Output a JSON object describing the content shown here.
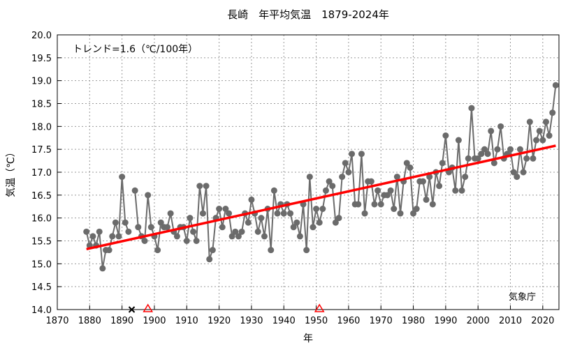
{
  "chart_data": {
    "type": "line",
    "title": "長崎　年平均気温　1879-2024年",
    "xlabel": "年",
    "ylabel": "気温（℃）",
    "xlim": [
      1870,
      2025
    ],
    "ylim": [
      14.0,
      20.0
    ],
    "xticks": [
      1870,
      1880,
      1890,
      1900,
      1910,
      1920,
      1930,
      1940,
      1950,
      1960,
      1970,
      1980,
      1990,
      2000,
      2010,
      2020
    ],
    "yticks": [
      "14.0",
      "14.5",
      "15.0",
      "15.5",
      "16.0",
      "16.5",
      "17.0",
      "17.5",
      "18.0",
      "18.5",
      "19.0",
      "19.5",
      "20.0"
    ],
    "grid": true,
    "trend_label": "トレンド=1.6（℃/100年）",
    "credit": "気象庁",
    "colors": {
      "series": "#6b6b6b",
      "trend": "#ff0000",
      "triangle": "#ff0000",
      "cross": "#000000"
    },
    "trend": {
      "x": [
        1879,
        2024
      ],
      "y": [
        15.32,
        17.58
      ]
    },
    "missing_markers": [
      1893
    ],
    "relocation_markers": [
      1898,
      1951
    ],
    "series": {
      "x": [
        1879,
        1880,
        1881,
        1882,
        1883,
        1884,
        1885,
        1886,
        1887,
        1888,
        1889,
        1890,
        1891,
        1892,
        1893,
        1894,
        1895,
        1896,
        1897,
        1898,
        1899,
        1900,
        1901,
        1902,
        1903,
        1904,
        1905,
        1906,
        1907,
        1908,
        1909,
        1910,
        1911,
        1912,
        1913,
        1914,
        1915,
        1916,
        1917,
        1918,
        1919,
        1920,
        1921,
        1922,
        1923,
        1924,
        1925,
        1926,
        1927,
        1928,
        1929,
        1930,
        1931,
        1932,
        1933,
        1934,
        1935,
        1936,
        1937,
        1938,
        1939,
        1940,
        1941,
        1942,
        1943,
        1944,
        1945,
        1946,
        1947,
        1948,
        1949,
        1950,
        1951,
        1952,
        1953,
        1954,
        1955,
        1956,
        1957,
        1958,
        1959,
        1960,
        1961,
        1962,
        1963,
        1964,
        1965,
        1966,
        1967,
        1968,
        1969,
        1970,
        1971,
        1972,
        1973,
        1974,
        1975,
        1976,
        1977,
        1978,
        1979,
        1980,
        1981,
        1982,
        1983,
        1984,
        1985,
        1986,
        1987,
        1988,
        1989,
        1990,
        1991,
        1992,
        1993,
        1994,
        1995,
        1996,
        1997,
        1998,
        1999,
        2000,
        2001,
        2002,
        2003,
        2004,
        2005,
        2006,
        2007,
        2008,
        2009,
        2010,
        2011,
        2012,
        2013,
        2014,
        2015,
        2016,
        2017,
        2018,
        2019,
        2020,
        2021,
        2022,
        2023,
        2024
      ],
      "y": [
        15.7,
        15.4,
        15.6,
        15.4,
        15.7,
        14.9,
        15.3,
        15.3,
        15.6,
        15.9,
        15.6,
        16.9,
        15.9,
        15.7,
        null,
        16.6,
        15.8,
        15.6,
        15.5,
        16.5,
        15.8,
        15.6,
        15.3,
        15.9,
        15.8,
        15.8,
        16.1,
        15.7,
        15.6,
        15.8,
        15.8,
        15.5,
        16.0,
        15.7,
        15.5,
        16.7,
        16.1,
        16.7,
        15.1,
        15.3,
        16.0,
        16.2,
        15.8,
        16.2,
        16.1,
        15.6,
        15.7,
        15.6,
        15.7,
        16.1,
        15.9,
        16.4,
        16.1,
        15.7,
        16.0,
        15.6,
        16.2,
        15.3,
        16.6,
        16.1,
        16.3,
        16.1,
        16.3,
        16.1,
        15.8,
        15.9,
        15.6,
        16.3,
        15.3,
        16.9,
        15.8,
        16.2,
        15.9,
        16.2,
        16.6,
        16.8,
        16.7,
        15.9,
        16.0,
        16.9,
        17.2,
        17.0,
        17.4,
        16.3,
        16.3,
        17.4,
        16.1,
        16.8,
        16.8,
        16.3,
        16.6,
        16.3,
        16.5,
        16.5,
        16.6,
        16.2,
        16.9,
        16.1,
        16.8,
        17.2,
        17.1,
        16.1,
        16.2,
        16.8,
        16.8,
        16.4,
        16.9,
        16.3,
        17.0,
        16.7,
        17.2,
        17.8,
        17.0,
        17.1,
        16.6,
        17.7,
        16.6,
        16.9,
        17.3,
        18.4,
        17.3,
        17.3,
        17.4,
        17.5,
        17.4,
        17.9,
        17.2,
        17.5,
        18.0,
        17.3,
        17.4,
        17.5,
        17.0,
        16.9,
        17.5,
        17.0,
        17.3,
        18.1,
        17.3,
        17.7,
        17.9,
        17.7,
        18.1,
        17.8,
        18.3,
        18.9
      ]
    }
  }
}
